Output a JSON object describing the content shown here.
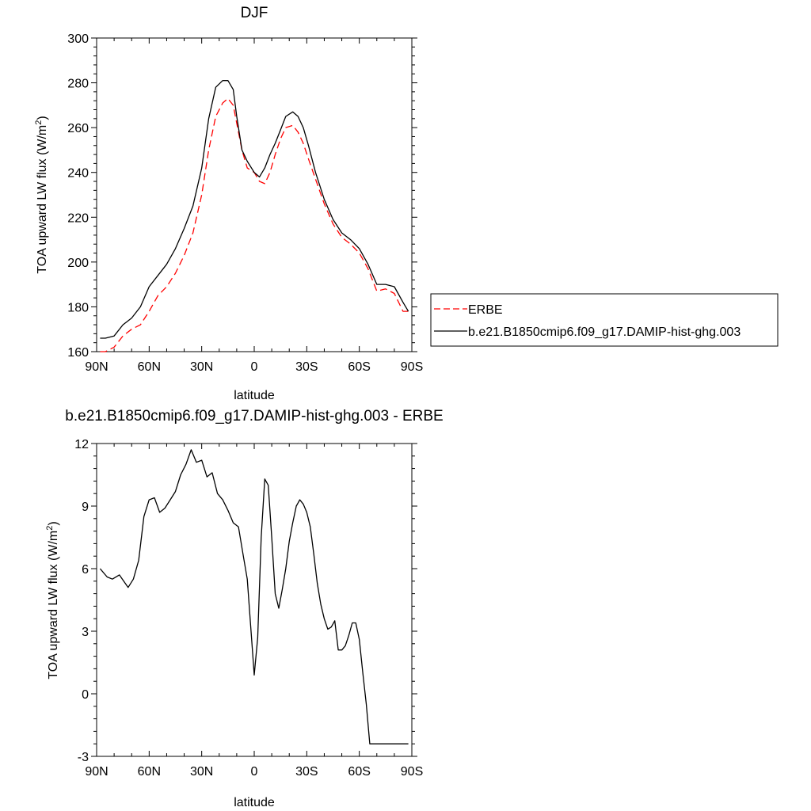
{
  "chart_data": [
    {
      "type": "line",
      "title": "DJF",
      "xlabel": "latitude",
      "ylabel_main": "TOA upward LW flux (W/m",
      "ylabel_sup": "2",
      "ylabel_close": ")",
      "xlim": [
        90,
        -90
      ],
      "ylim": [
        160,
        300
      ],
      "xticks": [
        90,
        60,
        30,
        0,
        -30,
        -60,
        -90
      ],
      "xtick_labels": [
        "90N",
        "60N",
        "30N",
        "0",
        "30S",
        "60S",
        "90S"
      ],
      "yticks": [
        160,
        180,
        200,
        220,
        240,
        260,
        280,
        300
      ],
      "ytick_labels": [
        "160",
        "180",
        "200",
        "220",
        "240",
        "260",
        "280",
        "300"
      ],
      "legend": [
        "ERBE",
        "b.e21.B1850cmip6.f09_g17.DAMIP-hist-ghg.003"
      ],
      "legend_position": "right",
      "series": [
        {
          "name": "ERBE",
          "style": "dashed",
          "color": "#ff0000",
          "x": [
            88,
            85,
            80,
            75,
            70,
            65,
            60,
            55,
            50,
            45,
            40,
            35,
            30,
            26,
            22,
            18,
            15,
            12,
            10,
            7,
            4,
            0,
            -3,
            -6,
            -9,
            -12,
            -15,
            -18,
            -22,
            -25,
            -28,
            -31,
            -35,
            -40,
            -45,
            -50,
            -55,
            -60,
            -65,
            -70,
            -75,
            -80,
            -85,
            -88
          ],
          "values": [
            160,
            160,
            162,
            167,
            170,
            172,
            178,
            185,
            189,
            195,
            203,
            213,
            230,
            250,
            265,
            271,
            273,
            270,
            262,
            250,
            242,
            240,
            236,
            235,
            240,
            248,
            255,
            260,
            261,
            258,
            253,
            246,
            237,
            226,
            217,
            211,
            208,
            204,
            197,
            187,
            188,
            186,
            178,
            178
          ]
        },
        {
          "name": "b.e21.B1850cmip6.f09_g17.DAMIP-hist-ghg.003",
          "style": "solid",
          "color": "#000000",
          "x": [
            88,
            85,
            80,
            75,
            70,
            65,
            60,
            55,
            50,
            45,
            40,
            35,
            30,
            26,
            22,
            18,
            15,
            12,
            10,
            7,
            4,
            0,
            -3,
            -6,
            -9,
            -12,
            -15,
            -18,
            -22,
            -25,
            -28,
            -31,
            -35,
            -40,
            -45,
            -50,
            -55,
            -60,
            -65,
            -70,
            -75,
            -80,
            -85,
            -88
          ],
          "values": [
            166,
            166,
            167,
            172,
            175,
            180,
            189,
            194,
            199,
            206,
            215,
            225,
            242,
            264,
            278,
            281,
            281,
            277,
            265,
            250,
            245,
            240,
            238,
            242,
            248,
            253,
            259,
            265,
            267,
            265,
            260,
            252,
            240,
            228,
            219,
            213,
            210,
            206,
            199,
            190,
            190,
            189,
            182,
            178
          ]
        }
      ]
    },
    {
      "type": "line",
      "title": "b.e21.B1850cmip6.f09_g17.DAMIP-hist-ghg.003 - ERBE",
      "xlabel": "latitude",
      "ylabel_main": "TOA upward LW flux (W/m",
      "ylabel_sup": "2",
      "ylabel_close": ")",
      "xlim": [
        90,
        -90
      ],
      "ylim": [
        -3,
        12
      ],
      "xticks": [
        90,
        60,
        30,
        0,
        -30,
        -60,
        -90
      ],
      "xtick_labels": [
        "90N",
        "60N",
        "30N",
        "0",
        "30S",
        "60S",
        "90S"
      ],
      "yticks": [
        -3,
        0,
        3,
        6,
        9,
        12
      ],
      "ytick_labels": [
        "-3",
        "0",
        "3",
        "6",
        "9",
        "12"
      ],
      "series": [
        {
          "name": "b.e21.B1850cmip6.f09_g17.DAMIP-hist-ghg.003 - ERBE",
          "style": "solid",
          "color": "#000000",
          "x": [
            88,
            84,
            81,
            77,
            72,
            69,
            66,
            63,
            60,
            57,
            54,
            51,
            48,
            45,
            42,
            39,
            36,
            33,
            30,
            27,
            24,
            21,
            18,
            15,
            12,
            9,
            6,
            4,
            2,
            0,
            -2,
            -4,
            -6,
            -8,
            -10,
            -12,
            -14,
            -16,
            -18,
            -20,
            -22,
            -24,
            -26,
            -28,
            -30,
            -32,
            -34,
            -36,
            -38,
            -40,
            -42,
            -44,
            -46,
            -48,
            -50,
            -52,
            -54,
            -56,
            -58,
            -60,
            -62,
            -64,
            -66,
            -68,
            -70,
            -72,
            -74,
            -76,
            -78,
            -80,
            -82,
            -84,
            -86,
            -88
          ],
          "values": [
            6.0,
            5.6,
            5.5,
            5.7,
            5.1,
            5.5,
            6.4,
            8.5,
            9.3,
            9.4,
            8.7,
            8.9,
            9.3,
            9.7,
            10.5,
            11.0,
            11.7,
            11.1,
            11.2,
            10.4,
            10.6,
            9.6,
            9.3,
            8.8,
            8.2,
            8.0,
            6.5,
            5.5,
            3.2,
            0.9,
            2.7,
            7.5,
            10.3,
            10.0,
            7.5,
            4.8,
            4.1,
            5.0,
            6.0,
            7.3,
            8.2,
            9.0,
            9.3,
            9.1,
            8.7,
            8.0,
            6.7,
            5.3,
            4.3,
            3.6,
            3.1,
            3.2,
            3.5,
            2.1,
            2.1,
            2.3,
            2.8,
            3.4,
            3.4,
            2.6,
            1.0,
            -0.5,
            -2.4,
            -2.4,
            -2.4,
            -2.4,
            -2.4,
            -2.4,
            -2.4,
            -2.4,
            -2.4,
            -2.4,
            -2.4,
            -2.4
          ]
        }
      ]
    }
  ]
}
